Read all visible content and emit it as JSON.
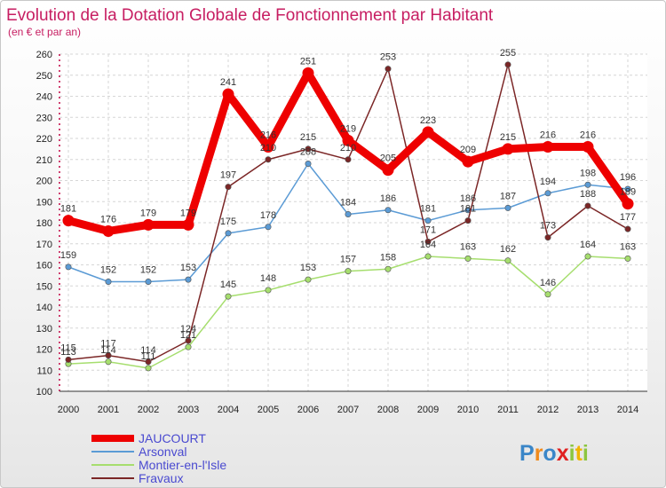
{
  "chart_data": {
    "type": "line",
    "title": "Evolution de la Dotation Globale de Fonctionnement par Habitant",
    "subtitle": "(en € et par an)",
    "xlabel": "",
    "ylabel": "",
    "ylim": [
      100,
      260
    ],
    "ystep": 10,
    "yticks": [
      "100",
      "110",
      "120",
      "130",
      "140",
      "150",
      "160",
      "170",
      "180",
      "190",
      "200",
      "210",
      "220",
      "230",
      "240",
      "250",
      "260"
    ],
    "categories": [
      "2000",
      "2001",
      "2002",
      "2003",
      "2004",
      "2005",
      "2006",
      "2007",
      "2008",
      "2009",
      "2010",
      "2011",
      "2012",
      "2013",
      "2014"
    ],
    "legend_position": "bottom-left",
    "series": [
      {
        "name": "JAUCOURT",
        "color": "#ee0000",
        "values": [
          181,
          176,
          179,
          179,
          241,
          216,
          251,
          219,
          205,
          223,
          209,
          215,
          216,
          216,
          189
        ],
        "labels": [
          "181",
          "176",
          "179",
          "179",
          "241",
          "216",
          "251",
          "219",
          "205",
          "223",
          "209",
          "215",
          "216",
          "216",
          "189"
        ]
      },
      {
        "name": "Arsonval",
        "color": "#5b9bd5",
        "values": [
          159,
          152,
          152,
          153,
          175,
          178,
          208,
          184,
          186,
          181,
          186,
          187,
          194,
          198,
          196
        ],
        "labels": [
          "159",
          "152",
          "152",
          "153",
          "175",
          "178",
          "208",
          "184",
          "186",
          "181",
          "186",
          "187",
          "194",
          "198",
          "196"
        ]
      },
      {
        "name": "Montier-en-l'Isle",
        "color": "#a6de6e",
        "values": [
          113,
          114,
          111,
          121,
          145,
          148,
          153,
          157,
          158,
          164,
          163,
          162,
          146,
          164,
          163
        ],
        "labels": [
          "113",
          "114",
          "111",
          "121",
          "145",
          "148",
          "153",
          "157",
          "158",
          "164",
          "163",
          "162",
          "146",
          "164",
          "163"
        ]
      },
      {
        "name": "Fravaux",
        "color": "#7b2626",
        "values": [
          115,
          117,
          114,
          124,
          197,
          210,
          215,
          210,
          253,
          171,
          181,
          255,
          173,
          188,
          177
        ],
        "labels": [
          "115",
          "117",
          "114",
          "124",
          "197",
          "210",
          "215",
          "210",
          "253",
          "171",
          "181",
          "255",
          "173",
          "188",
          "177"
        ]
      }
    ]
  },
  "logo": {
    "letters": [
      "P",
      "r",
      "o",
      "x",
      "i",
      "t",
      "i"
    ],
    "colors": [
      "#3a86c8",
      "#f08a1c",
      "#3a86c8",
      "#e02020",
      "#8cc63f",
      "#f0b400",
      "#8cc63f"
    ]
  }
}
